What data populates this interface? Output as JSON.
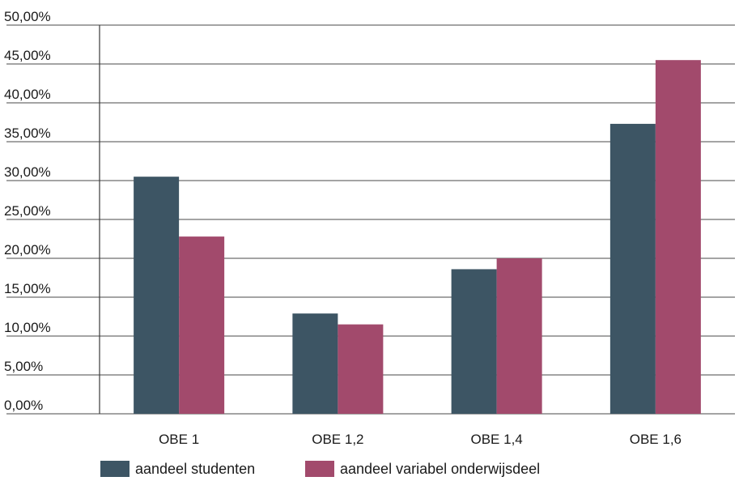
{
  "chart_data": {
    "type": "bar",
    "categories": [
      "OBE 1",
      "OBE 1,2",
      "OBE 1,4",
      "OBE 1,6"
    ],
    "series": [
      {
        "name": "aandeel studenten",
        "color": "#3d5564",
        "values": [
          30.5,
          12.9,
          18.6,
          37.3
        ]
      },
      {
        "name": "aandeel variabel onderwijsdeel",
        "color": "#a24a6c",
        "values": [
          22.8,
          11.5,
          20.0,
          45.5
        ]
      }
    ],
    "ylim": [
      0,
      50
    ],
    "yticks": [
      0,
      5,
      10,
      15,
      20,
      25,
      30,
      35,
      40,
      45,
      50
    ],
    "ytick_labels": [
      "0,00%",
      "5,00%",
      "10,00%",
      "15,00%",
      "20,00%",
      "25,00%",
      "30,00%",
      "35,00%",
      "40,00%",
      "45,00%",
      "50,00%"
    ],
    "grid": true,
    "legend_position": "bottom",
    "title": "",
    "xlabel": "",
    "ylabel": ""
  }
}
